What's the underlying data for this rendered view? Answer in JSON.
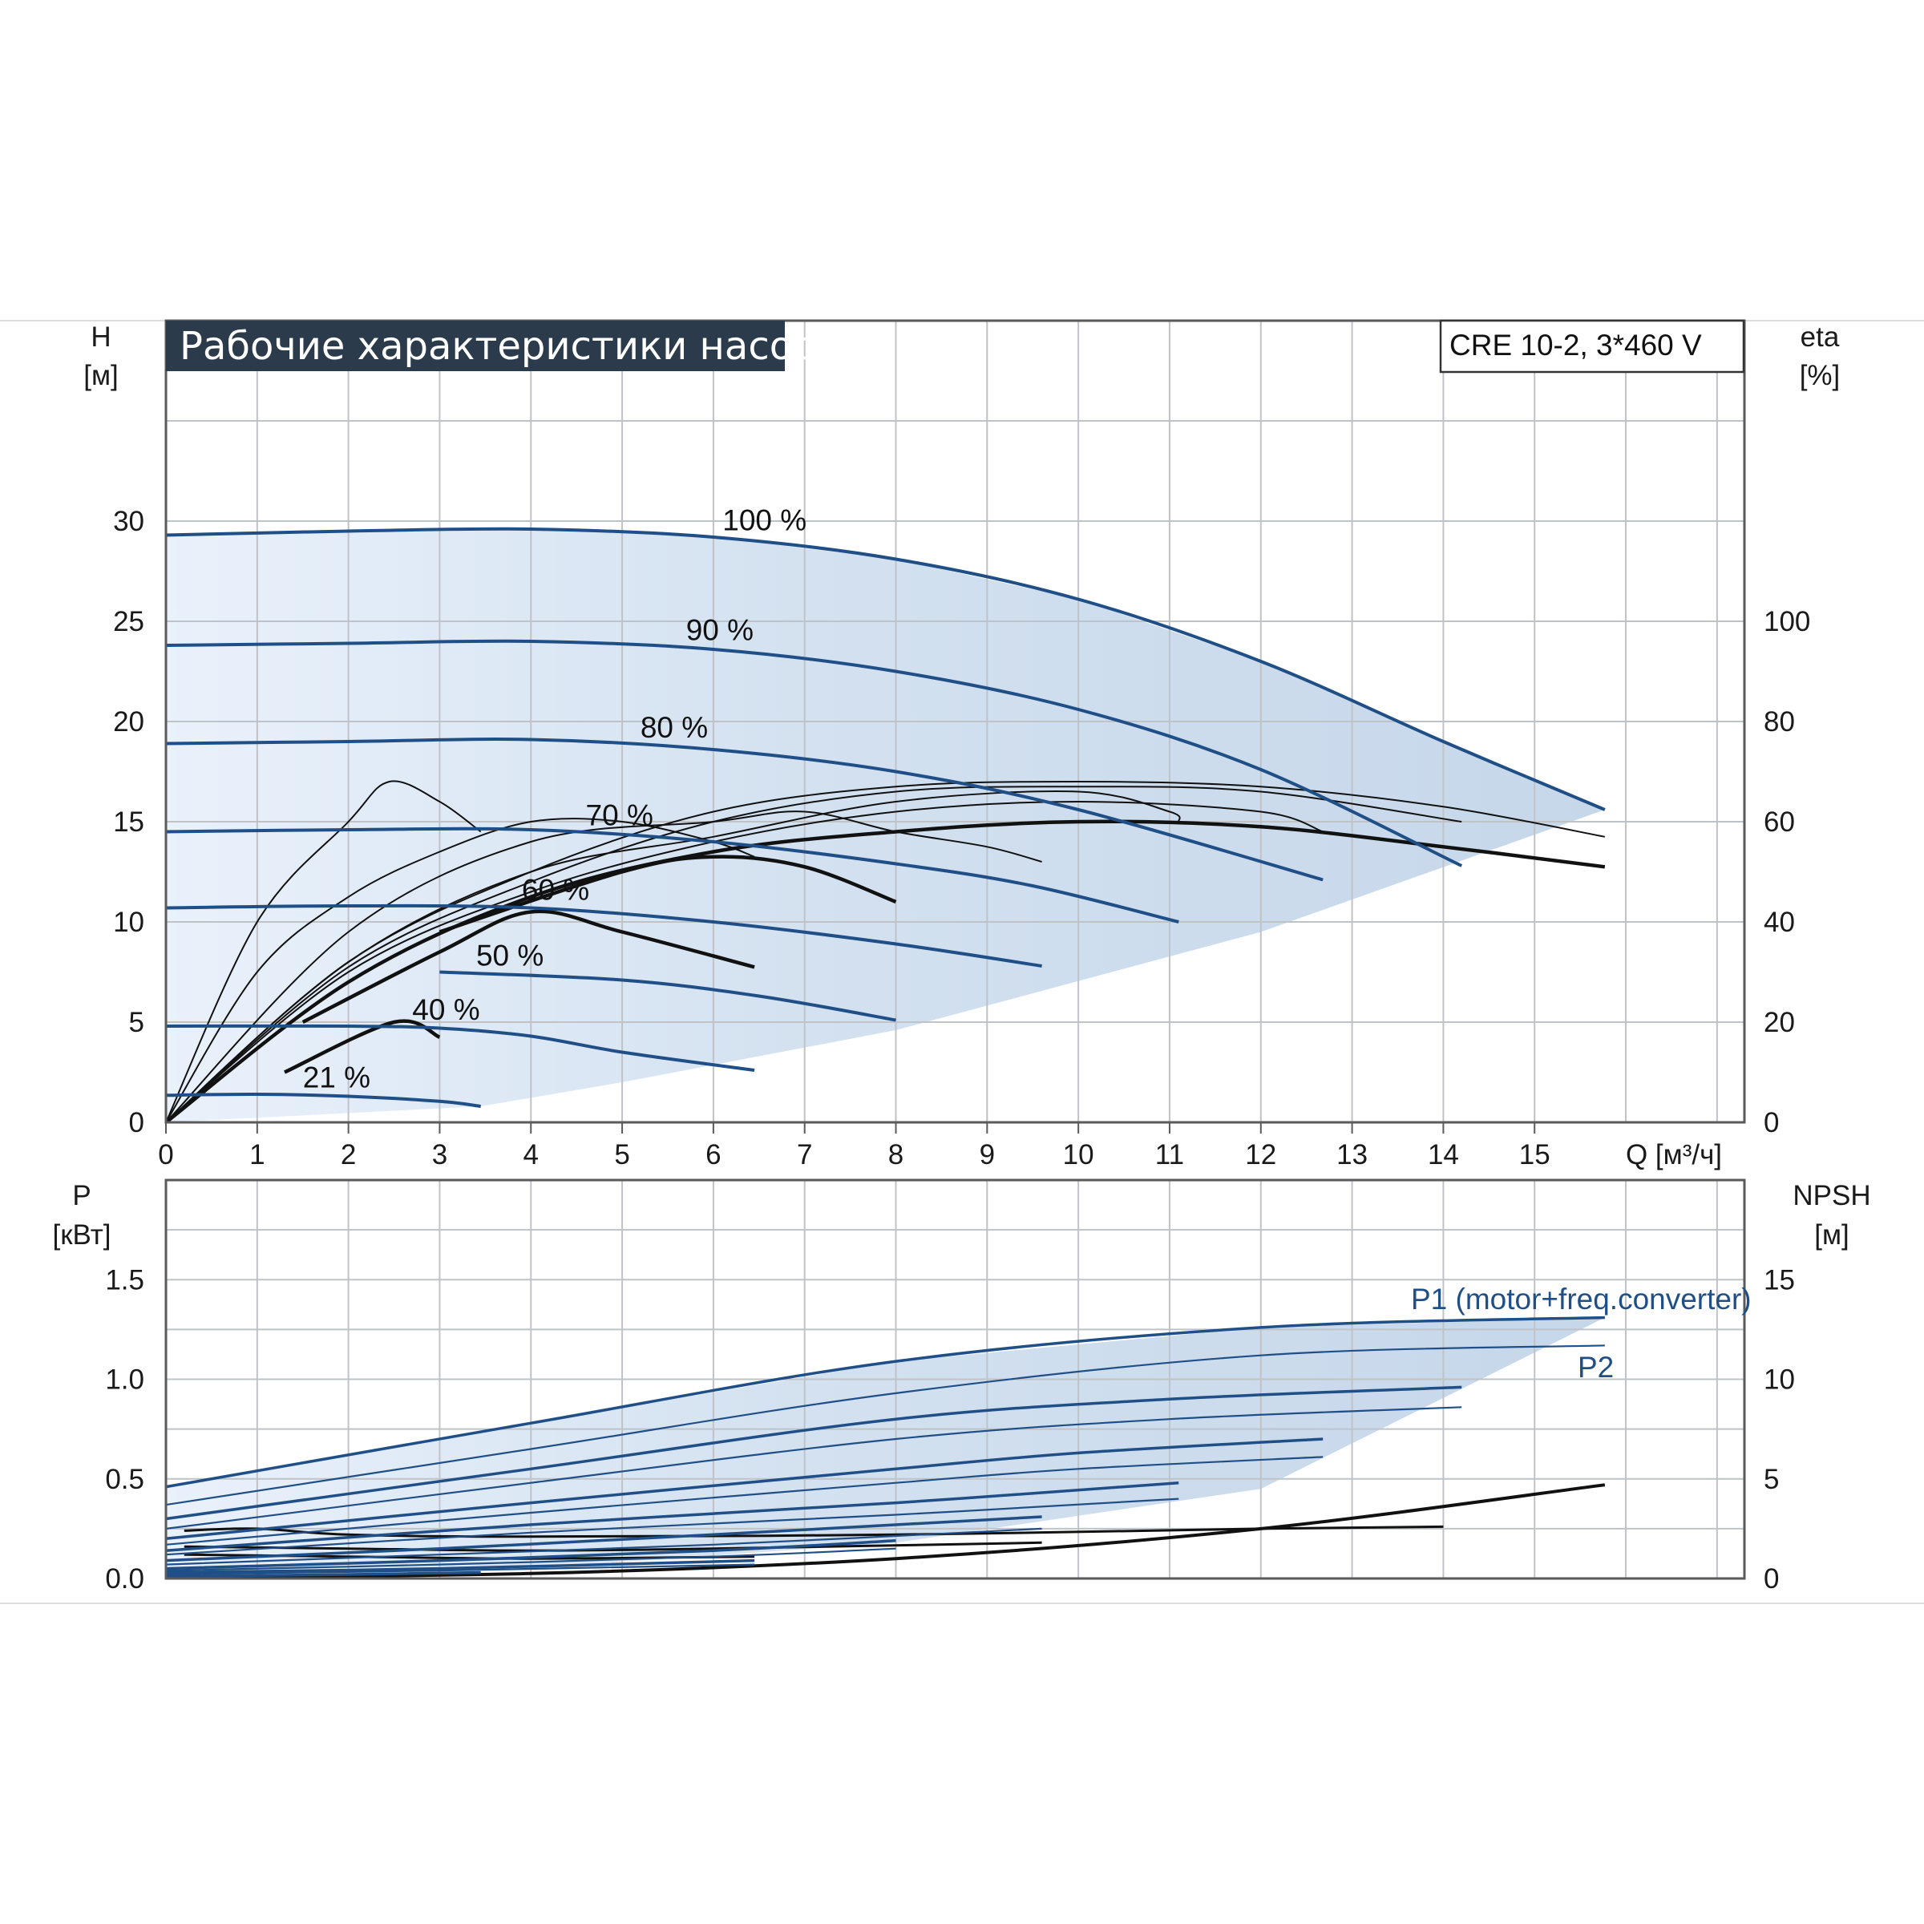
{
  "chart_data": [
    {
      "type": "line",
      "title": "Рабочие характеристики насоса",
      "model": "CRE 10-2, 3*460 V",
      "x_label": "Q [м³/ч]",
      "xlim": [
        0,
        17.3
      ],
      "x_ticks": [
        "0",
        "1",
        "2",
        "3",
        "4",
        "5",
        "6",
        "7",
        "8",
        "9",
        "10",
        "11",
        "12",
        "13",
        "14",
        "15"
      ],
      "y_left_label": [
        "H",
        "[м]"
      ],
      "ylim_left": [
        0,
        40
      ],
      "y_left_ticks": [
        "0",
        "5",
        "10",
        "15",
        "20",
        "25",
        "30"
      ],
      "y_right_label": [
        "eta",
        "[%]"
      ],
      "ylim_right": [
        0,
        160
      ],
      "y_right_ticks": [
        "0",
        "20",
        "40",
        "60",
        "80",
        "100"
      ],
      "grid": true,
      "head_curves": [
        {
          "name": "100 %",
          "values": [
            [
              0,
              29.3
            ],
            [
              2,
              29.5
            ],
            [
              4,
              29.6
            ],
            [
              6,
              29.2
            ],
            [
              8,
              28.1
            ],
            [
              10,
              26.1
            ],
            [
              12,
              23
            ],
            [
              14,
              19
            ],
            [
              15.77,
              15.6
            ]
          ]
        },
        {
          "name": "90 %",
          "values": [
            [
              0,
              23.8
            ],
            [
              2,
              23.9
            ],
            [
              4,
              24
            ],
            [
              6,
              23.6
            ],
            [
              8,
              22.5
            ],
            [
              10,
              20.6
            ],
            [
              12,
              17.6
            ],
            [
              14.2,
              12.8
            ]
          ]
        },
        {
          "name": "80 %",
          "values": [
            [
              0,
              18.9
            ],
            [
              2,
              19
            ],
            [
              4,
              19.1
            ],
            [
              6,
              18.6
            ],
            [
              8,
              17.5
            ],
            [
              10,
              15.6
            ],
            [
              12.68,
              12.1
            ]
          ]
        },
        {
          "name": "70 %",
          "values": [
            [
              0,
              14.5
            ],
            [
              2,
              14.6
            ],
            [
              4,
              14.6
            ],
            [
              6,
              14
            ],
            [
              8,
              12.9
            ],
            [
              9.5,
              11.8
            ],
            [
              11.1,
              10
            ]
          ]
        },
        {
          "name": "60 %",
          "values": [
            [
              0,
              10.7
            ],
            [
              2,
              10.8
            ],
            [
              4,
              10.7
            ],
            [
              6,
              10
            ],
            [
              8,
              8.9
            ],
            [
              9.6,
              7.8
            ]
          ]
        },
        {
          "name": "50 %",
          "values": [
            [
              3,
              7.5
            ],
            [
              5,
              7.1
            ],
            [
              6.5,
              6.3
            ],
            [
              8,
              5.1
            ]
          ]
        },
        {
          "name": "40 %",
          "values": [
            [
              0,
              4.8
            ],
            [
              2,
              4.8
            ],
            [
              3,
              4.7
            ],
            [
              4,
              4.3
            ],
            [
              5,
              3.5
            ],
            [
              6.45,
              2.6
            ]
          ]
        },
        {
          "name": "21 %",
          "values": [
            [
              0,
              1.35
            ],
            [
              1,
              1.4
            ],
            [
              2,
              1.3
            ],
            [
              3,
              1.05
            ],
            [
              3.45,
              0.8
            ]
          ]
        }
      ],
      "efficiency_curves": [
        {
          "name": "",
          "values": [
            [
              0,
              0
            ],
            [
              1,
              40
            ],
            [
              2,
              60
            ],
            [
              2.45,
              68
            ],
            [
              3,
              64
            ],
            [
              3.45,
              58
            ]
          ]
        },
        {
          "name": "",
          "values": [
            [
              0,
              0
            ],
            [
              1,
              30
            ],
            [
              2,
              45
            ],
            [
              3,
              54
            ],
            [
              4,
              60
            ],
            [
              5,
              60
            ],
            [
              6,
              56
            ],
            [
              6.45,
              53
            ]
          ]
        },
        {
          "name": "",
          "values": [
            [
              0,
              0
            ],
            [
              2,
              38
            ],
            [
              4,
              56
            ],
            [
              6,
              60
            ],
            [
              7,
              62
            ],
            [
              8,
              58
            ],
            [
              9,
              55
            ],
            [
              9.6,
              52
            ]
          ]
        },
        {
          "name": "",
          "values": [
            [
              0,
              0
            ],
            [
              2,
              32
            ],
            [
              4,
              50
            ],
            [
              6,
              57
            ],
            [
              8,
              64
            ],
            [
              10,
              66
            ],
            [
              11,
              62
            ],
            [
              11.1,
              60
            ]
          ]
        },
        {
          "name": "",
          "values": [
            [
              0,
              0
            ],
            [
              2,
              30
            ],
            [
              4,
              46
            ],
            [
              6,
              56
            ],
            [
              8,
              62
            ],
            [
              10,
              64
            ],
            [
              12,
              62
            ],
            [
              12.68,
              58
            ]
          ]
        },
        {
          "name": "",
          "values": [
            [
              0,
              0
            ],
            [
              2,
              31
            ],
            [
              4,
              48
            ],
            [
              6,
              60
            ],
            [
              8,
              66
            ],
            [
              10,
              67
            ],
            [
              12,
              66
            ],
            [
              14.2,
              60
            ]
          ]
        },
        {
          "name": "",
          "values": [
            [
              0,
              0
            ],
            [
              2,
              32
            ],
            [
              4,
              50
            ],
            [
              6,
              62
            ],
            [
              8,
              67
            ],
            [
              10,
              68
            ],
            [
              12,
              67
            ],
            [
              14,
              63
            ],
            [
              15.77,
              57
            ]
          ]
        }
      ],
      "efficiency_bold": [
        {
          "name": "",
          "values": [
            [
              0,
              0
            ],
            [
              2,
              28
            ],
            [
              4,
              45
            ],
            [
              6,
              54
            ],
            [
              8,
              58
            ],
            [
              10,
              60
            ],
            [
              12,
              59
            ],
            [
              14,
              55
            ],
            [
              15.77,
              51
            ]
          ]
        },
        {
          "name": "",
          "values": [
            [
              1.3,
              10
            ],
            [
              2.5,
              20
            ],
            [
              3,
              17
            ]
          ]
        },
        {
          "name": "",
          "values": [
            [
              1.5,
              20
            ],
            [
              3,
              34
            ],
            [
              4,
              42
            ],
            [
              5,
              38
            ],
            [
              6.45,
              31
            ]
          ]
        },
        {
          "name": "",
          "values": [
            [
              3,
              38
            ],
            [
              5,
              50
            ],
            [
              6,
              53
            ],
            [
              7,
              51
            ],
            [
              8,
              44
            ]
          ]
        }
      ]
    },
    {
      "type": "line",
      "x_label": "Q [м³/ч]",
      "xlim": [
        0,
        17.3
      ],
      "y_left_label": [
        "P",
        "[кВт]"
      ],
      "ylim_left": [
        0,
        2.0
      ],
      "y_left_ticks": [
        "0.0",
        "0.5",
        "1.0",
        "1.5"
      ],
      "y_right_label": [
        "NPSH",
        "[м]"
      ],
      "ylim_right": [
        0,
        20
      ],
      "y_right_ticks": [
        "0",
        "5",
        "10",
        "15"
      ],
      "grid": true,
      "series_labels": [
        "P1 (motor+freq.converter)",
        "P2"
      ],
      "power_curves": [
        {
          "name": "P1 (motor+freq.converter)",
          "values": [
            [
              0,
              0.46
            ],
            [
              4,
              0.78
            ],
            [
              8,
              1.09
            ],
            [
              12,
              1.26
            ],
            [
              15.77,
              1.31
            ]
          ]
        },
        {
          "name": "P2",
          "values": [
            [
              0,
              0.37
            ],
            [
              4,
              0.65
            ],
            [
              8,
              0.93
            ],
            [
              12,
              1.12
            ],
            [
              15.77,
              1.17
            ]
          ]
        },
        {
          "name": "",
          "values": [
            [
              0,
              0.3
            ],
            [
              4,
              0.55
            ],
            [
              8,
              0.8
            ],
            [
              11,
              0.9
            ],
            [
              14.2,
              0.96
            ]
          ]
        },
        {
          "name": "",
          "values": [
            [
              0,
              0.25
            ],
            [
              4,
              0.48
            ],
            [
              8,
              0.7
            ],
            [
              11,
              0.8
            ],
            [
              14.2,
              0.86
            ]
          ]
        },
        {
          "name": "",
          "values": [
            [
              0,
              0.2
            ],
            [
              4,
              0.38
            ],
            [
              8,
              0.55
            ],
            [
              10,
              0.63
            ],
            [
              12.68,
              0.7
            ]
          ]
        },
        {
          "name": "",
          "values": [
            [
              0,
              0.17
            ],
            [
              4,
              0.33
            ],
            [
              8,
              0.48
            ],
            [
              10,
              0.55
            ],
            [
              12.68,
              0.61
            ]
          ]
        },
        {
          "name": "",
          "values": [
            [
              0,
              0.14
            ],
            [
              4,
              0.27
            ],
            [
              8,
              0.38
            ],
            [
              11.1,
              0.48
            ]
          ]
        },
        {
          "name": "",
          "values": [
            [
              0,
              0.12
            ],
            [
              4,
              0.23
            ],
            [
              8,
              0.32
            ],
            [
              11.1,
              0.4
            ]
          ]
        },
        {
          "name": "",
          "values": [
            [
              0,
              0.09
            ],
            [
              3,
              0.15
            ],
            [
              6,
              0.22
            ],
            [
              9.6,
              0.31
            ]
          ]
        },
        {
          "name": "",
          "values": [
            [
              0,
              0.07
            ],
            [
              3,
              0.12
            ],
            [
              6,
              0.17
            ],
            [
              9.6,
              0.25
            ]
          ]
        },
        {
          "name": "",
          "values": [
            [
              0,
              0.05
            ],
            [
              3,
              0.09
            ],
            [
              6,
              0.14
            ],
            [
              8,
              0.19
            ]
          ]
        },
        {
          "name": "",
          "values": [
            [
              0,
              0.04
            ],
            [
              3,
              0.07
            ],
            [
              6,
              0.11
            ],
            [
              8,
              0.15
            ]
          ]
        },
        {
          "name": "",
          "values": [
            [
              0,
              0.03
            ],
            [
              3,
              0.05
            ],
            [
              6.45,
              0.09
            ]
          ]
        },
        {
          "name": "",
          "values": [
            [
              0,
              0.02
            ],
            [
              3,
              0.04
            ],
            [
              6.45,
              0.07
            ]
          ]
        },
        {
          "name": "",
          "values": [
            [
              0,
              0.01
            ],
            [
              2,
              0.02
            ],
            [
              3.45,
              0.03
            ]
          ]
        }
      ],
      "npsh_curves": [
        {
          "name": "",
          "values": [
            [
              0,
              0.05
            ],
            [
              4,
              0.25
            ],
            [
              8,
              1
            ],
            [
              12,
              2.5
            ],
            [
              15.77,
              4.7
            ]
          ]
        },
        {
          "name": "",
          "values": [
            [
              0.2,
              2.4
            ],
            [
              1,
              2.5
            ],
            [
              2,
              2.2
            ],
            [
              4,
              2.1
            ],
            [
              8,
              2.2
            ],
            [
              12,
              2.5
            ],
            [
              14,
              2.6
            ]
          ]
        },
        {
          "name": "",
          "values": [
            [
              0.2,
              1.6
            ],
            [
              2,
              1.5
            ],
            [
              4,
              1.4
            ],
            [
              6,
              1.5
            ],
            [
              9.6,
              1.8
            ]
          ]
        },
        {
          "name": "",
          "values": [
            [
              0.2,
              1.2
            ],
            [
              2,
              1.1
            ],
            [
              4,
              1
            ],
            [
              6.45,
              1.1
            ]
          ]
        }
      ]
    }
  ]
}
